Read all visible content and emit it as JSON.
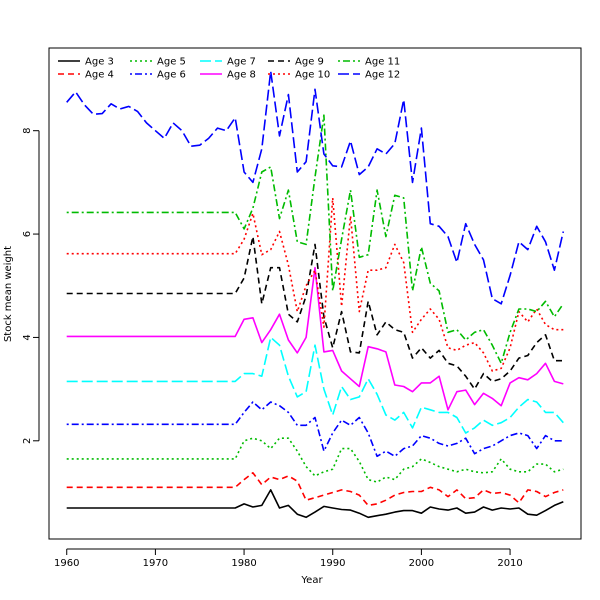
{
  "chart_data": {
    "type": "line",
    "title": "",
    "xlabel": "Year",
    "ylabel": "Stock mean weight",
    "xlim": [
      1958,
      2018
    ],
    "ylim": [
      0.1,
      9.6
    ],
    "xticks": [
      1960,
      1970,
      1980,
      1990,
      2000,
      2010
    ],
    "yticks": [
      2,
      4,
      6,
      8
    ],
    "grid": false,
    "legend_position": "top-left",
    "series": [
      {
        "name": "Age 3",
        "color": "#000000",
        "dash": "solid",
        "x": [
          1960,
          1965,
          1970,
          1975,
          1979,
          1980,
          1981,
          1982,
          1983,
          1984,
          1985,
          1986,
          1987,
          1988,
          1989,
          1990,
          1991,
          1992,
          1993,
          1994,
          1995,
          1996,
          1997,
          1998,
          1999,
          2000,
          2001,
          2002,
          2003,
          2004,
          2005,
          2006,
          2007,
          2008,
          2009,
          2010,
          2011,
          2012,
          2013,
          2014,
          2015,
          2016
        ],
        "y": [
          0.7,
          0.7,
          0.7,
          0.7,
          0.7,
          0.78,
          0.72,
          0.75,
          1.05,
          0.7,
          0.75,
          0.58,
          0.52,
          0.62,
          0.73,
          0.7,
          0.67,
          0.66,
          0.6,
          0.52,
          0.55,
          0.58,
          0.62,
          0.65,
          0.65,
          0.6,
          0.72,
          0.68,
          0.66,
          0.7,
          0.6,
          0.62,
          0.72,
          0.66,
          0.7,
          0.68,
          0.7,
          0.58,
          0.56,
          0.65,
          0.75,
          0.82
        ]
      },
      {
        "name": "Age 4",
        "color": "#ff0000",
        "dash": "dashed",
        "x": [
          1960,
          1965,
          1970,
          1975,
          1979,
          1980,
          1981,
          1982,
          1983,
          1984,
          1985,
          1986,
          1987,
          1988,
          1989,
          1990,
          1991,
          1992,
          1993,
          1994,
          1995,
          1996,
          1997,
          1998,
          1999,
          2000,
          2001,
          2002,
          2003,
          2004,
          2005,
          2006,
          2007,
          2008,
          2009,
          2010,
          2011,
          2012,
          2013,
          2014,
          2015,
          2016
        ],
        "y": [
          1.1,
          1.1,
          1.1,
          1.1,
          1.1,
          1.25,
          1.38,
          1.15,
          1.3,
          1.25,
          1.32,
          1.22,
          0.85,
          0.9,
          0.95,
          1.0,
          1.05,
          1.02,
          0.95,
          0.75,
          0.78,
          0.85,
          0.95,
          1.0,
          1.02,
          1.02,
          1.1,
          1.05,
          0.92,
          1.05,
          0.88,
          0.9,
          1.05,
          0.98,
          1.0,
          0.95,
          0.8,
          1.05,
          1.02,
          0.92,
          1.0,
          1.05
        ]
      },
      {
        "name": "Age 5",
        "color": "#00bb00",
        "dash": "dotted",
        "x": [
          1960,
          1965,
          1970,
          1975,
          1979,
          1980,
          1981,
          1982,
          1983,
          1984,
          1985,
          1986,
          1987,
          1988,
          1989,
          1990,
          1991,
          1992,
          1993,
          1994,
          1995,
          1996,
          1997,
          1998,
          1999,
          2000,
          2001,
          2002,
          2003,
          2004,
          2005,
          2006,
          2007,
          2008,
          2009,
          2010,
          2011,
          2012,
          2013,
          2014,
          2015,
          2016
        ],
        "y": [
          1.65,
          1.65,
          1.65,
          1.65,
          1.65,
          2.0,
          2.05,
          2.0,
          1.85,
          2.05,
          2.05,
          1.8,
          1.5,
          1.32,
          1.4,
          1.45,
          1.85,
          1.85,
          1.6,
          1.25,
          1.2,
          1.3,
          1.25,
          1.45,
          1.5,
          1.65,
          1.58,
          1.5,
          1.45,
          1.4,
          1.45,
          1.4,
          1.38,
          1.4,
          1.65,
          1.45,
          1.4,
          1.4,
          1.55,
          1.55,
          1.4,
          1.45
        ]
      },
      {
        "name": "Age 6",
        "color": "#0000ff",
        "dash": "dashdot",
        "x": [
          1960,
          1965,
          1970,
          1975,
          1979,
          1980,
          1981,
          1982,
          1983,
          1984,
          1985,
          1986,
          1987,
          1988,
          1989,
          1990,
          1991,
          1992,
          1993,
          1994,
          1995,
          1996,
          1997,
          1998,
          1999,
          2000,
          2001,
          2002,
          2003,
          2004,
          2005,
          2006,
          2007,
          2008,
          2009,
          2010,
          2011,
          2012,
          2013,
          2014,
          2015,
          2016
        ],
        "y": [
          2.32,
          2.32,
          2.32,
          2.32,
          2.32,
          2.55,
          2.75,
          2.6,
          2.75,
          2.68,
          2.55,
          2.3,
          2.3,
          2.45,
          1.8,
          2.15,
          2.4,
          2.3,
          2.45,
          2.15,
          1.7,
          1.8,
          1.7,
          1.85,
          1.9,
          2.1,
          2.05,
          1.95,
          1.9,
          1.95,
          2.05,
          1.75,
          1.85,
          1.9,
          2.0,
          2.1,
          2.15,
          2.1,
          1.85,
          2.1,
          2.0,
          2.0
        ]
      },
      {
        "name": "Age 7",
        "color": "#00ffff",
        "dash": "longdash",
        "x": [
          1960,
          1965,
          1970,
          1975,
          1979,
          1980,
          1981,
          1982,
          1983,
          1984,
          1985,
          1986,
          1987,
          1988,
          1989,
          1990,
          1991,
          1992,
          1993,
          1994,
          1995,
          1996,
          1997,
          1998,
          1999,
          2000,
          2001,
          2002,
          2003,
          2004,
          2005,
          2006,
          2007,
          2008,
          2009,
          2010,
          2011,
          2012,
          2013,
          2014,
          2015,
          2016
        ],
        "y": [
          3.15,
          3.15,
          3.15,
          3.15,
          3.15,
          3.3,
          3.3,
          3.25,
          4.0,
          3.85,
          3.25,
          2.85,
          2.95,
          3.85,
          3.0,
          2.5,
          3.05,
          2.8,
          2.85,
          3.2,
          2.9,
          2.5,
          2.4,
          2.55,
          2.25,
          2.65,
          2.6,
          2.55,
          2.55,
          2.45,
          2.15,
          2.25,
          2.4,
          2.3,
          2.35,
          2.45,
          2.65,
          2.8,
          2.75,
          2.55,
          2.55,
          2.35
        ]
      },
      {
        "name": "Age 8",
        "color": "#ff00ff",
        "dash": "solid",
        "x": [
          1960,
          1965,
          1970,
          1975,
          1979,
          1980,
          1981,
          1982,
          1983,
          1984,
          1985,
          1986,
          1987,
          1988,
          1989,
          1990,
          1991,
          1992,
          1993,
          1994,
          1995,
          1996,
          1997,
          1998,
          1999,
          2000,
          2001,
          2002,
          2003,
          2004,
          2005,
          2006,
          2007,
          2008,
          2009,
          2010,
          2011,
          2012,
          2013,
          2014,
          2015,
          2016
        ],
        "y": [
          4.02,
          4.02,
          4.02,
          4.02,
          4.02,
          4.35,
          4.38,
          3.9,
          4.15,
          4.45,
          3.95,
          3.7,
          4.0,
          5.35,
          3.72,
          3.75,
          3.35,
          3.2,
          3.05,
          3.82,
          3.78,
          3.72,
          3.08,
          3.05,
          2.95,
          3.12,
          3.12,
          3.25,
          2.6,
          2.95,
          2.98,
          2.7,
          2.92,
          2.82,
          2.68,
          3.12,
          3.22,
          3.18,
          3.3,
          3.5,
          3.15,
          3.1
        ]
      },
      {
        "name": "Age 9",
        "color": "#000000",
        "dash": "dashed",
        "x": [
          1960,
          1965,
          1970,
          1975,
          1979,
          1980,
          1981,
          1982,
          1983,
          1984,
          1985,
          1986,
          1987,
          1988,
          1989,
          1990,
          1991,
          1992,
          1993,
          1994,
          1995,
          1996,
          1997,
          1998,
          1999,
          2000,
          2001,
          2002,
          2003,
          2004,
          2005,
          2006,
          2007,
          2008,
          2009,
          2010,
          2011,
          2012,
          2013,
          2014,
          2015,
          2016
        ],
        "y": [
          4.85,
          4.85,
          4.85,
          4.85,
          4.85,
          5.15,
          5.95,
          4.65,
          5.35,
          5.35,
          4.45,
          4.3,
          4.8,
          5.8,
          4.4,
          3.8,
          4.5,
          3.72,
          3.7,
          4.7,
          4.05,
          4.3,
          4.15,
          4.1,
          3.6,
          3.8,
          3.6,
          3.75,
          3.5,
          3.45,
          3.25,
          3.0,
          3.3,
          3.15,
          3.2,
          3.35,
          3.6,
          3.65,
          3.9,
          4.05,
          3.55,
          3.55
        ]
      },
      {
        "name": "Age 10",
        "color": "#ff0000",
        "dash": "dotted",
        "x": [
          1960,
          1965,
          1970,
          1975,
          1979,
          1980,
          1981,
          1982,
          1983,
          1984,
          1985,
          1986,
          1987,
          1988,
          1989,
          1990,
          1991,
          1992,
          1993,
          1994,
          1995,
          1996,
          1997,
          1998,
          1999,
          2000,
          2001,
          2002,
          2003,
          2004,
          2005,
          2006,
          2007,
          2008,
          2009,
          2010,
          2011,
          2012,
          2013,
          2014,
          2015,
          2016
        ],
        "y": [
          5.62,
          5.62,
          5.62,
          5.62,
          5.62,
          5.9,
          6.4,
          5.6,
          5.7,
          6.05,
          5.4,
          4.5,
          5.0,
          5.3,
          4.2,
          6.7,
          4.6,
          6.35,
          4.5,
          5.3,
          5.3,
          5.35,
          5.8,
          5.45,
          4.1,
          4.35,
          4.55,
          4.35,
          3.8,
          3.75,
          3.85,
          3.9,
          3.7,
          3.35,
          3.4,
          3.8,
          4.5,
          4.3,
          4.55,
          4.25,
          4.15,
          4.15
        ]
      },
      {
        "name": "Age 11",
        "color": "#00bb00",
        "dash": "dashdot",
        "x": [
          1960,
          1965,
          1970,
          1975,
          1979,
          1980,
          1981,
          1982,
          1983,
          1984,
          1985,
          1986,
          1987,
          1988,
          1989,
          1990,
          1991,
          1992,
          1993,
          1994,
          1995,
          1996,
          1997,
          1998,
          1999,
          2000,
          2001,
          2002,
          2003,
          2004,
          2005,
          2006,
          2007,
          2008,
          2009,
          2010,
          2011,
          2012,
          2013,
          2014,
          2015,
          2016
        ],
        "y": [
          6.42,
          6.42,
          6.42,
          6.42,
          6.42,
          6.1,
          6.5,
          7.2,
          7.3,
          6.3,
          6.85,
          5.85,
          5.8,
          7.1,
          8.3,
          4.9,
          5.9,
          6.85,
          5.55,
          5.6,
          6.85,
          5.95,
          6.75,
          6.7,
          4.9,
          5.75,
          5.05,
          4.9,
          4.1,
          4.15,
          3.95,
          4.1,
          4.15,
          3.85,
          3.5,
          4.1,
          4.55,
          4.55,
          4.5,
          4.7,
          4.4,
          4.65
        ]
      },
      {
        "name": "Age 12",
        "color": "#0000ff",
        "dash": "longdash",
        "x": [
          1960,
          1961,
          1962,
          1963,
          1964,
          1965,
          1966,
          1967,
          1968,
          1969,
          1970,
          1971,
          1972,
          1973,
          1974,
          1975,
          1976,
          1977,
          1978,
          1979,
          1980,
          1981,
          1982,
          1983,
          1984,
          1985,
          1986,
          1987,
          1988,
          1989,
          1990,
          1991,
          1992,
          1993,
          1994,
          1995,
          1996,
          1997,
          1998,
          1999,
          2000,
          2001,
          2002,
          2003,
          2004,
          2005,
          2006,
          2007,
          2008,
          2009,
          2010,
          2011,
          2012,
          2013,
          2014,
          2015,
          2016
        ],
        "y": [
          8.55,
          8.75,
          8.5,
          8.32,
          8.33,
          8.52,
          8.42,
          8.47,
          8.37,
          8.15,
          8.0,
          7.85,
          8.15,
          8.0,
          7.7,
          7.72,
          7.85,
          8.05,
          8.0,
          8.25,
          7.2,
          7.0,
          7.65,
          9.15,
          7.9,
          8.7,
          7.2,
          7.4,
          8.8,
          7.55,
          7.32,
          7.3,
          7.8,
          7.15,
          7.3,
          7.65,
          7.55,
          7.75,
          8.6,
          7.0,
          8.05,
          6.2,
          6.15,
          5.95,
          5.45,
          6.2,
          5.8,
          5.5,
          4.75,
          4.65,
          5.2,
          5.85,
          5.7,
          6.15,
          5.85,
          5.3,
          6.05
        ]
      }
    ]
  }
}
